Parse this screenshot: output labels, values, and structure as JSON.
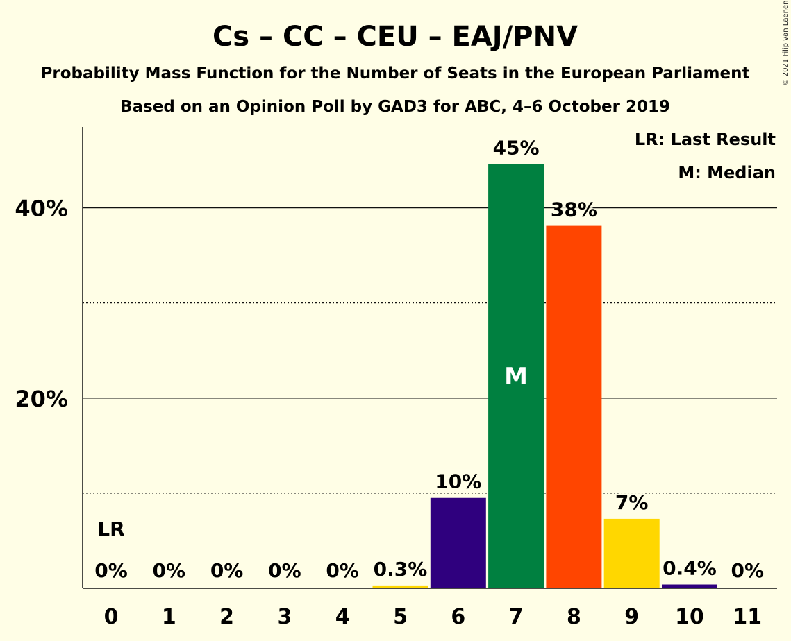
{
  "chart_data": {
    "type": "bar",
    "title": "Cs – CC – CEU – EAJ/PNV",
    "subtitle": "Probability Mass Function for the Number of Seats in the European Parliament",
    "subtitle2": "Based on an Opinion Poll by GAD3 for ABC, 4–6 October 2019",
    "copyright": "© 2021 Filip van Laenen",
    "categories": [
      "0",
      "1",
      "2",
      "3",
      "4",
      "5",
      "6",
      "7",
      "8",
      "9",
      "10",
      "11"
    ],
    "values": [
      0,
      0,
      0,
      0,
      0,
      0.3,
      9.5,
      44.6,
      38.1,
      7.3,
      0.4,
      0
    ],
    "value_labels": [
      "0%",
      "0%",
      "0%",
      "0%",
      "0%",
      "0.3%",
      "10%",
      "45%",
      "38%",
      "7%",
      "0.4%",
      "0%"
    ],
    "colors": [
      "#FFFEE6",
      "#FFFEE6",
      "#FFFEE6",
      "#FFFEE6",
      "#FFFEE6",
      "#FFD700",
      "#2F007E",
      "#008040",
      "#FF4500",
      "#FFD700",
      "#2F007E",
      "#FFFEE6"
    ],
    "ylim": [
      0,
      48.5
    ],
    "yticks": [
      {
        "value": 20,
        "label": "20%"
      },
      {
        "value": 40,
        "label": "40%"
      }
    ],
    "minor_gridlines": [
      10,
      30
    ],
    "last_result": {
      "index": 0,
      "label": "LR"
    },
    "median": {
      "index": 7,
      "label": "M"
    },
    "legend": [
      "LR: Last Result",
      "M: Median"
    ],
    "legend_position": "top-right"
  }
}
